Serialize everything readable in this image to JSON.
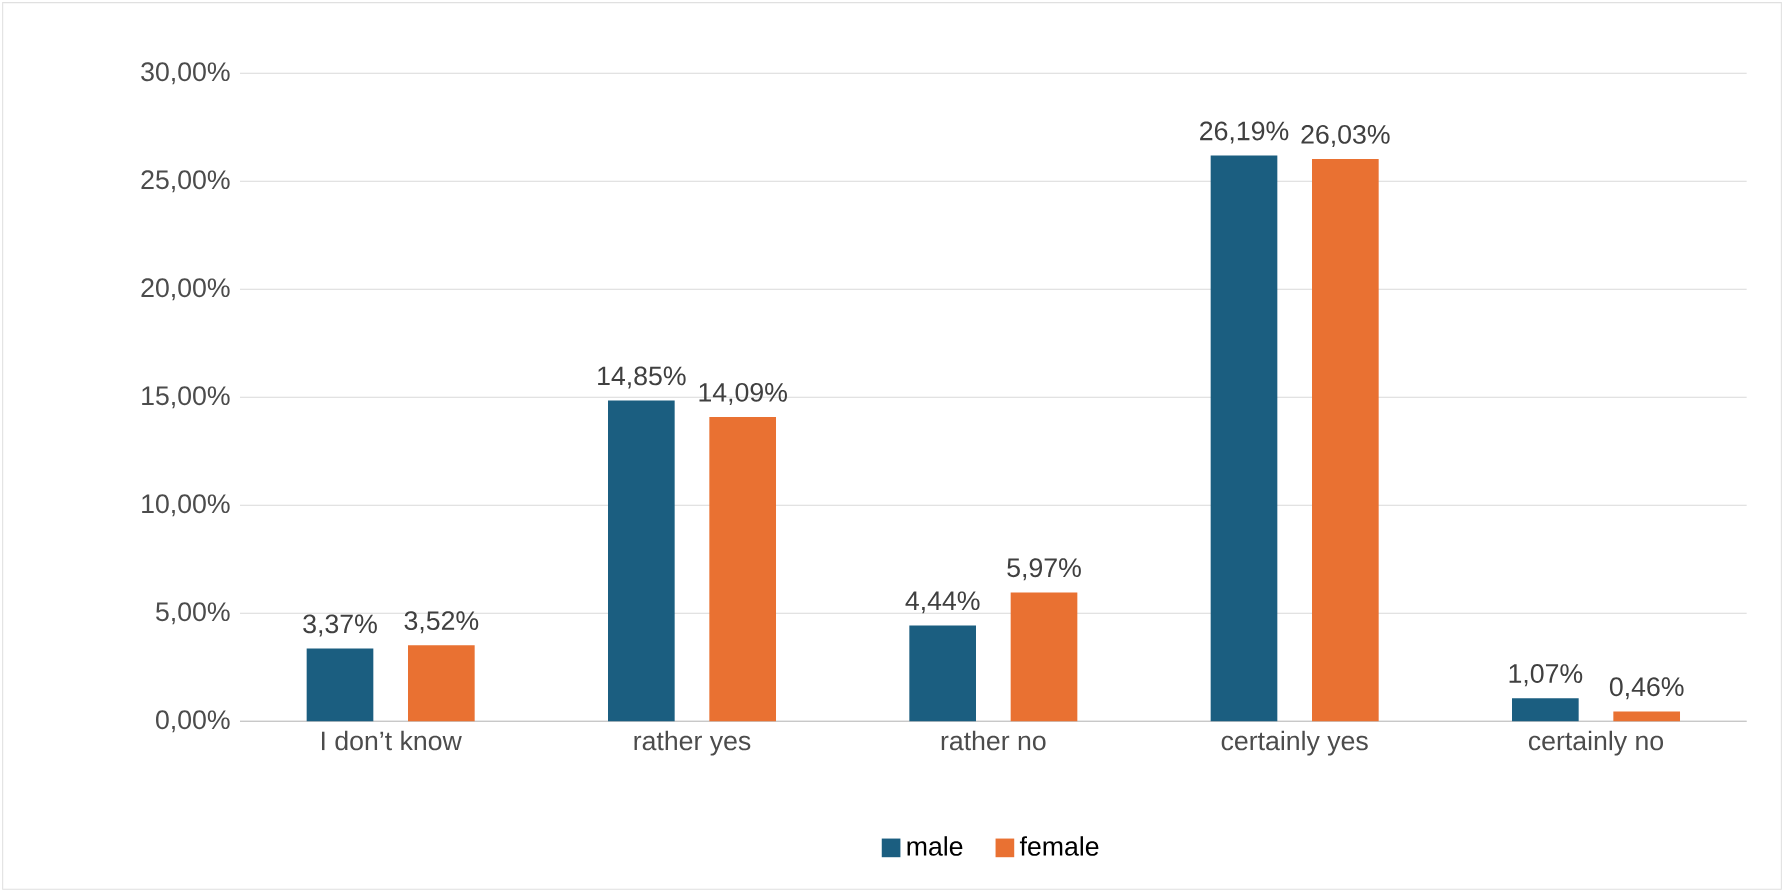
{
  "chart_data": {
    "type": "bar",
    "categories": [
      "I don’t know",
      "rather yes",
      "rather no",
      "certainly yes",
      "certainly no"
    ],
    "series": [
      {
        "name": "male",
        "color": "#1b5e80",
        "values": [
          3.37,
          14.85,
          4.44,
          26.19,
          1.07
        ],
        "value_labels": [
          "3,37%",
          "14,85%",
          "4,44%",
          "26,19%",
          "1,07%"
        ]
      },
      {
        "name": "female",
        "color": "#e97132",
        "values": [
          3.52,
          14.09,
          5.97,
          26.03,
          0.46
        ],
        "value_labels": [
          "3,52%",
          "14,09%",
          "5,97%",
          "26,03%",
          "0,46%"
        ]
      }
    ],
    "ylim": [
      0,
      30
    ],
    "yticks": [
      {
        "value": 0,
        "label": "0,00%"
      },
      {
        "value": 5,
        "label": "5,00%"
      },
      {
        "value": 10,
        "label": "10,00%"
      },
      {
        "value": 15,
        "label": "15,00%"
      },
      {
        "value": 20,
        "label": "20,00%"
      },
      {
        "value": 25,
        "label": "25,00%"
      },
      {
        "value": 30,
        "label": "30,00%"
      }
    ],
    "grid": "y",
    "legend": "bottom"
  }
}
